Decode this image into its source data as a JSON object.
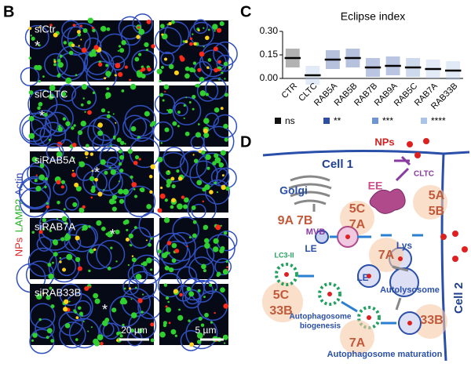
{
  "panel_b": {
    "label": "B",
    "channels": [
      "NPs",
      "LAMP2",
      "Actin"
    ],
    "rows": [
      "siCtr",
      "siCLTC",
      "siRAB5A",
      "siRAB7A",
      "siRAB33B"
    ],
    "marker": "*",
    "scale_bars": [
      "20 µm",
      "5 µm"
    ]
  },
  "chart_data": {
    "type": "strip",
    "panel_label": "C",
    "title": "Eclipse index",
    "categories": [
      "CTR",
      "CLTC",
      "RAB5A",
      "RAB5B",
      "RAB7B",
      "RAB9A",
      "RAB5C",
      "RAB7A",
      "RAB33B"
    ],
    "values": [
      0.13,
      0.02,
      0.12,
      0.13,
      0.07,
      0.08,
      0.07,
      0.06,
      0.05
    ],
    "colors": [
      "#222222",
      "#a9c4e6",
      "#2e4f9e",
      "#2e4f9e",
      "#3a5ca8",
      "#3a5ca8",
      "#6f95cf",
      "#a9c4e6",
      "#a9c4e6"
    ],
    "ylim": [
      0,
      0.3
    ],
    "yticks": [
      {
        "value": 0,
        "label": "0.00"
      },
      {
        "value": 0.15,
        "label": "0.15"
      },
      {
        "value": 0.3,
        "label": "0.30"
      }
    ],
    "legend": [
      {
        "name": "ns",
        "color": "#111111"
      },
      {
        "name": "**",
        "color": "#2e4f9e"
      },
      {
        "name": "***",
        "color": "#6f95cf"
      },
      {
        "name": "****",
        "color": "#a9c4e6"
      }
    ]
  },
  "panel_d": {
    "label": "D",
    "labels": [
      "NPs",
      "Cell 1",
      "CLTC",
      "Golgi",
      "EE",
      "5A",
      "5B",
      "5C",
      "7A",
      "MVB",
      "9A  7B",
      "LE",
      "Lys",
      "7A",
      "LE",
      "LC3-II",
      "5C",
      "33B",
      "Autolysosome",
      "Cell 2",
      "Autophagosome",
      "biogenesis",
      "7A",
      "33B",
      "Autophagosome maturation"
    ]
  }
}
